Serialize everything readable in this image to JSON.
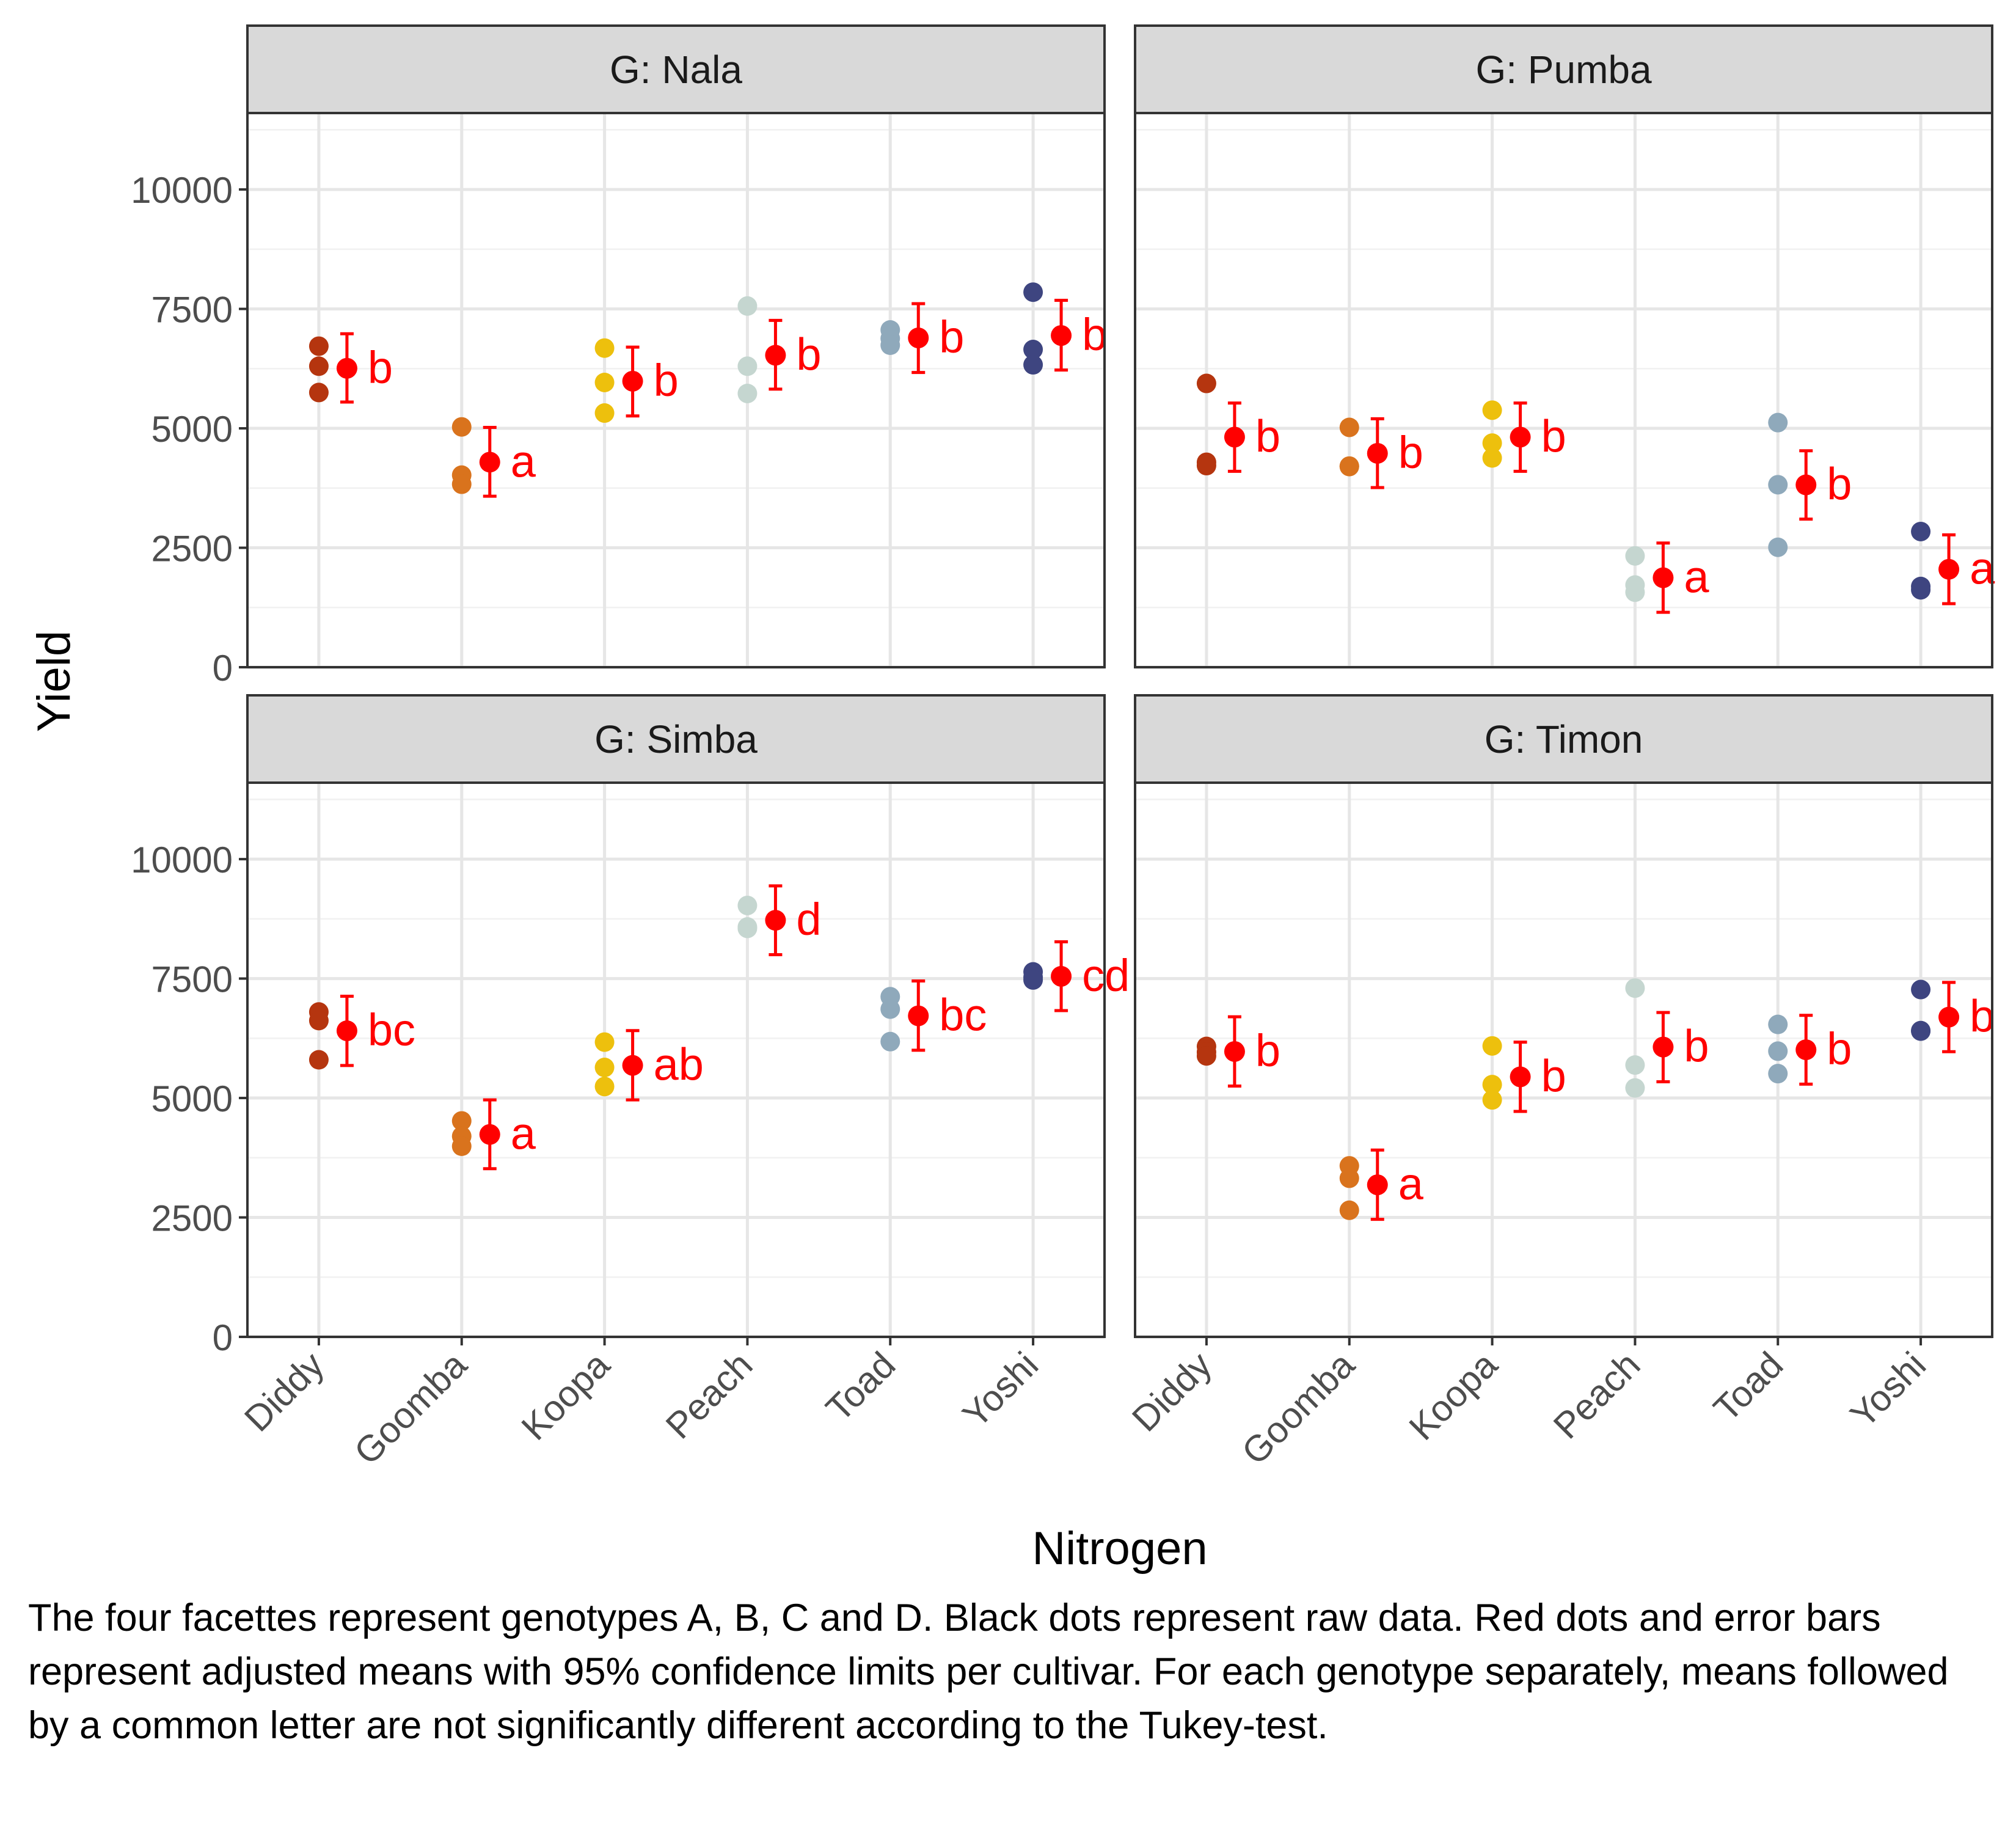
{
  "chart_data": {
    "type": "scatter",
    "subtype": "faceted point estimates with 95% confidence intervals and raw data",
    "xlabel": "Nitrogen",
    "ylabel": "Yield",
    "ylim": [
      0,
      11600
    ],
    "yticks": [
      0,
      2500,
      5000,
      7500,
      10000
    ],
    "categories": [
      "Diddy",
      "Goomba",
      "Koopa",
      "Peach",
      "Toad",
      "Yoshi"
    ],
    "category_colors": [
      "#B5350F",
      "#D9731D",
      "#EDC00D",
      "#C5D6D0",
      "#8FA9BB",
      "#3E4580"
    ],
    "mean_color": "#FF0000",
    "grid": true,
    "facets": [
      {
        "title": "G: Nala",
        "raw": [
          [
            6720,
            6300,
            5750
          ],
          [
            5030,
            4020,
            3830
          ],
          [
            6680,
            5960,
            5320
          ],
          [
            7560,
            6300,
            5730
          ],
          [
            7060,
            6880,
            6740
          ],
          [
            7850,
            6650,
            6330
          ]
        ],
        "mean": [
          6257,
          4293,
          5987,
          6530,
          6893,
          6943
        ],
        "lower": [
          5550,
          3580,
          5260,
          5820,
          6170,
          6220
        ],
        "upper": [
          6980,
          5020,
          6700,
          7260,
          7610,
          7680
        ],
        "letters": [
          "b",
          "a",
          "b",
          "b",
          "b",
          "b"
        ]
      },
      {
        "title": "G: Pumba",
        "raw": [
          [
            5940,
            4290,
            4220
          ],
          [
            5020,
            4210,
            4200
          ],
          [
            5380,
            4690,
            4380
          ],
          [
            2330,
            1720,
            1570
          ],
          [
            5120,
            3820,
            2510
          ],
          [
            2840,
            1690,
            1620
          ]
        ],
        "mean": [
          4817,
          4477,
          4817,
          1873,
          3817,
          2050
        ],
        "lower": [
          4100,
          3760,
          4100,
          1150,
          3100,
          1330
        ],
        "upper": [
          5530,
          5200,
          5530,
          2600,
          4530,
          2770
        ],
        "letters": [
          "b",
          "b",
          "b",
          "a",
          "b",
          "a"
        ]
      },
      {
        "title": "G: Simba",
        "raw": [
          [
            6800,
            6620,
            5800
          ],
          [
            4520,
            4200,
            3990
          ],
          [
            6170,
            5640,
            5240
          ],
          [
            9030,
            8580,
            8550
          ],
          [
            7120,
            6860,
            6180
          ],
          [
            7640,
            7530,
            7470
          ]
        ],
        "mean": [
          6407,
          4237,
          5683,
          8720,
          6720,
          7547
        ],
        "lower": [
          5680,
          3520,
          4960,
          8000,
          6000,
          6830
        ],
        "upper": [
          7130,
          4960,
          6410,
          9440,
          7450,
          8270
        ],
        "letters": [
          "bc",
          "a",
          "ab",
          "d",
          "bc",
          "cd"
        ]
      },
      {
        "title": "G: Timon",
        "raw": [
          [
            6080,
            5960,
            5880
          ],
          [
            3580,
            3320,
            2650
          ],
          [
            6090,
            5280,
            4960
          ],
          [
            7300,
            5690,
            5210
          ],
          [
            6540,
            5980,
            5510
          ],
          [
            7270,
            6410,
            6400
          ]
        ],
        "mean": [
          5973,
          3183,
          5443,
          6067,
          6010,
          6693
        ],
        "lower": [
          5250,
          2460,
          4720,
          5340,
          5290,
          5970
        ],
        "upper": [
          6700,
          3910,
          6170,
          6790,
          6730,
          7420
        ],
        "letters": [
          "b",
          "a",
          "b",
          "b",
          "b",
          "b"
        ]
      }
    ]
  },
  "caption": "The four facettes represent genotypes A, B, C and D. Black dots represent raw data. Red dots and error bars represent adjusted means with 95% confidence limits per cultivar. For each genotype separately, means followed by a common letter are not significantly different according to the Tukey-test."
}
